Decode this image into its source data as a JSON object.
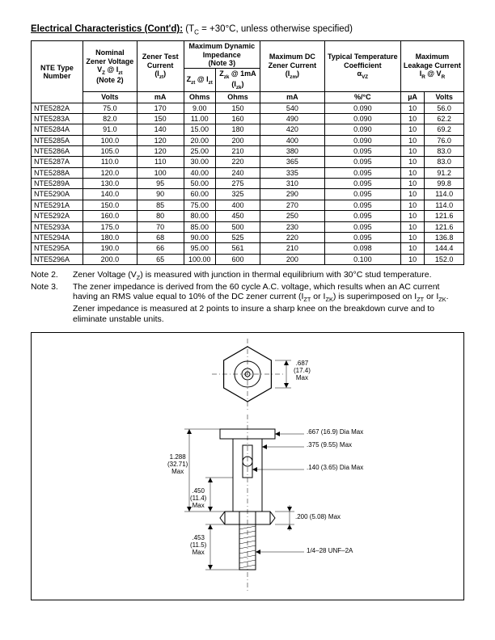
{
  "title": {
    "heading": "Electrical Characteristics (Cont'd):",
    "condition": " (T",
    "condition_sub": "C",
    "condition_rest": " = +30°C, unless otherwise specified)"
  },
  "table": {
    "headers": {
      "nte": "NTE Type Number",
      "nominal": "Nominal Zener Voltage",
      "nominal_sub": "V",
      "nominal_sub2": "Z",
      "nominal_at": " @ I",
      "nominal_sub3": "zt",
      "nominal_note": "(Note 2)",
      "zener_test": "Zener Test Current",
      "zener_sym": "(I",
      "zener_sym2": "zt",
      "zener_sym3": ")",
      "max_dyn": "Maximum Dynamic Impedance",
      "max_dyn_note": "(Note 3)",
      "zzt": "Z",
      "zzt_sub": "zt",
      "zzt_at": " @ I",
      "zzt_sub2": "zt",
      "zzk": "Z",
      "zzk_sub": "zk",
      "zzk_at": " @ 1mA (I",
      "zzk_sub2": "zk",
      "zzk_close": ")",
      "max_dc": "Maximum DC Zener Current",
      "max_dc_sym": "(I",
      "max_dc_sub": "zm",
      "max_dc_close": ")",
      "temp": "Typical Temperature Coefficient",
      "temp_sym": "α",
      "temp_sub": "VZ",
      "leak": "Maximum Leakage Current",
      "leak_sym": "I",
      "leak_sub": "R",
      "leak_at": " @ V",
      "leak_sub2": "R",
      "units": {
        "volts": "Volts",
        "ma": "mA",
        "ohms": "Ohms",
        "pct": "%/°C",
        "ua": "µA"
      }
    },
    "rows": [
      {
        "pn": "NTE5282A",
        "vz": "75.0",
        "izt": "170",
        "zzt": "9.00",
        "zzk": "150",
        "izm": "540",
        "avz": "0.090",
        "ir": "10",
        "vr": "56.0"
      },
      {
        "pn": "NTE5283A",
        "vz": "82.0",
        "izt": "150",
        "zzt": "11.00",
        "zzk": "160",
        "izm": "490",
        "avz": "0.090",
        "ir": "10",
        "vr": "62.2"
      },
      {
        "pn": "NTE5284A",
        "vz": "91.0",
        "izt": "140",
        "zzt": "15.00",
        "zzk": "180",
        "izm": "420",
        "avz": "0.090",
        "ir": "10",
        "vr": "69.2"
      },
      {
        "pn": "NTE5285A",
        "vz": "100.0",
        "izt": "120",
        "zzt": "20.00",
        "zzk": "200",
        "izm": "400",
        "avz": "0.090",
        "ir": "10",
        "vr": "76.0"
      },
      {
        "pn": "NTE5286A",
        "vz": "105.0",
        "izt": "120",
        "zzt": "25.00",
        "zzk": "210",
        "izm": "380",
        "avz": "0.095",
        "ir": "10",
        "vr": "83.0"
      },
      {
        "pn": "NTE5287A",
        "vz": "110.0",
        "izt": "110",
        "zzt": "30.00",
        "zzk": "220",
        "izm": "365",
        "avz": "0.095",
        "ir": "10",
        "vr": "83.0"
      },
      {
        "pn": "NTE5288A",
        "vz": "120.0",
        "izt": "100",
        "zzt": "40.00",
        "zzk": "240",
        "izm": "335",
        "avz": "0.095",
        "ir": "10",
        "vr": "91.2"
      },
      {
        "pn": "NTE5289A",
        "vz": "130.0",
        "izt": "95",
        "zzt": "50.00",
        "zzk": "275",
        "izm": "310",
        "avz": "0.095",
        "ir": "10",
        "vr": "99.8"
      },
      {
        "pn": "NTE5290A",
        "vz": "140.0",
        "izt": "90",
        "zzt": "60.00",
        "zzk": "325",
        "izm": "290",
        "avz": "0.095",
        "ir": "10",
        "vr": "114.0"
      },
      {
        "pn": "NTE5291A",
        "vz": "150.0",
        "izt": "85",
        "zzt": "75.00",
        "zzk": "400",
        "izm": "270",
        "avz": "0.095",
        "ir": "10",
        "vr": "114.0"
      },
      {
        "pn": "NTE5292A",
        "vz": "160.0",
        "izt": "80",
        "zzt": "80.00",
        "zzk": "450",
        "izm": "250",
        "avz": "0.095",
        "ir": "10",
        "vr": "121.6"
      },
      {
        "pn": "NTE5293A",
        "vz": "175.0",
        "izt": "70",
        "zzt": "85.00",
        "zzk": "500",
        "izm": "230",
        "avz": "0.095",
        "ir": "10",
        "vr": "121.6"
      },
      {
        "pn": "NTE5294A",
        "vz": "180.0",
        "izt": "68",
        "zzt": "90.00",
        "zzk": "525",
        "izm": "220",
        "avz": "0.095",
        "ir": "10",
        "vr": "136.8"
      },
      {
        "pn": "NTE5295A",
        "vz": "190.0",
        "izt": "66",
        "zzt": "95.00",
        "zzk": "561",
        "izm": "210",
        "avz": "0.098",
        "ir": "10",
        "vr": "144.4"
      },
      {
        "pn": "NTE5296A",
        "vz": "200.0",
        "izt": "65",
        "zzt": "100.00",
        "zzk": "600",
        "izm": "200",
        "avz": "0.100",
        "ir": "10",
        "vr": "152.0"
      }
    ]
  },
  "notes": {
    "n2_label": "Note   2.",
    "n2_text": "Zener Voltage (V",
    "n2_sub": "Z",
    "n2_rest": ") is measured with junction in thermal equilibrium with 30°C stud temperature.",
    "n3_label": "Note   3.",
    "n3_text": "The zener impedance is derived from the 60 cycle A.C. voltage, which results when an AC current having an RMS value equal to 10% of the DC zener current (I",
    "n3_sub1": "ZT",
    "n3_mid": " or I",
    "n3_sub2": "ZK",
    "n3_rest": ") is superimposed on I",
    "n3_sub3": "ZT",
    "n3_or": " or I",
    "n3_sub4": "ZK",
    "n3_final": ".  Zener impedance is measured at 2 points to insure a sharp knee on the breakdown curve and to eliminate unstable units."
  },
  "diagram": {
    "d687": ".687",
    "d687_mm": "(17.4)",
    "max": "Max",
    "d667": ".667 (16.9) Dia Max",
    "d375": ".375 (9.55) Max",
    "d1288": "1.288",
    "d1288_mm": "(32.71)",
    "d140": ".140 (3.65) Dia Max",
    "d450": ".450",
    "d450_mm": "(11.4)",
    "d200": ".200 (5.08) Max",
    "d453": ".453",
    "d453_mm": "(11.5)",
    "thread": "1/4–28 UNF–2A",
    "colors": {
      "line": "#000000",
      "bg": "#ffffff"
    }
  }
}
